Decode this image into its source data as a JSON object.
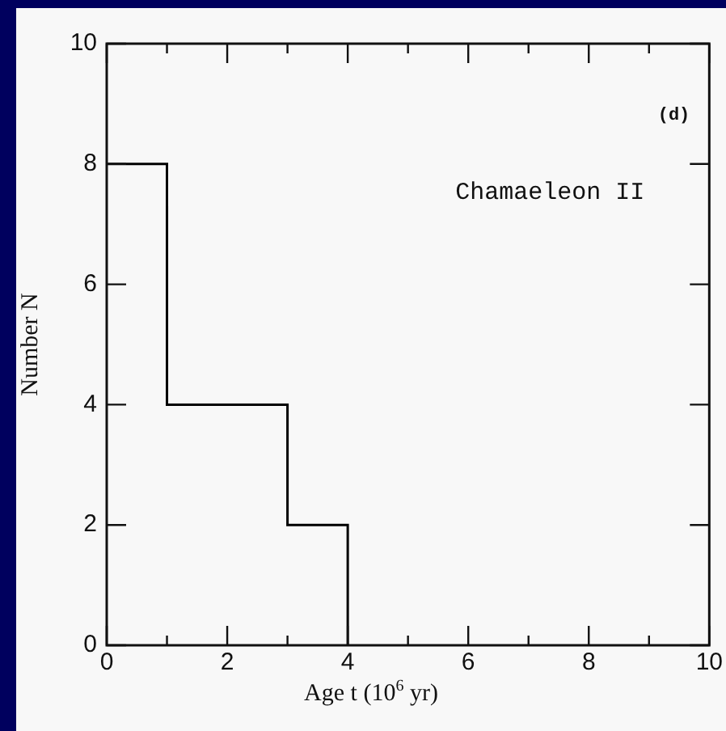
{
  "chart_data": {
    "type": "histogram",
    "xlabel": "Age t (10$^{6}$ yr)",
    "ylabel": "Number N",
    "annotations": [
      "(d)",
      "Chamaeleon II"
    ],
    "bins": [
      0,
      1,
      2,
      3,
      4
    ],
    "values": [
      8,
      4,
      4,
      2
    ],
    "color": "#000000",
    "xlim": [
      0,
      10
    ],
    "xticks": [
      0,
      {
        "value": 1,
        "label": null
      },
      2,
      {
        "value": 3,
        "label": null
      },
      4,
      {
        "value": 5,
        "label": null
      },
      6,
      {
        "value": 7,
        "label": null
      },
      8,
      {
        "value": 9,
        "label": null
      },
      10
    ],
    "ylim": [
      0,
      10
    ],
    "yticks": [
      0,
      2,
      4,
      6,
      8,
      10
    ],
    "grid": false,
    "legend": false
  }
}
